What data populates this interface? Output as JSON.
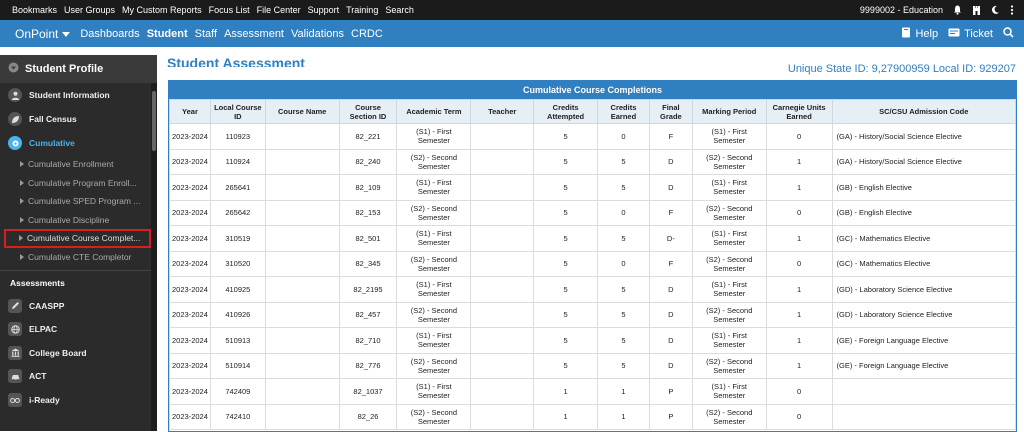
{
  "topbar": {
    "links": [
      "Bookmarks",
      "User Groups",
      "My Custom Reports",
      "Focus List",
      "File Center",
      "Support",
      "Training",
      "Search"
    ],
    "district": "9999002 - Education"
  },
  "navbar": {
    "brand": "OnPoint",
    "items": [
      {
        "label": "Dashboards",
        "active": false
      },
      {
        "label": "Student",
        "active": true
      },
      {
        "label": "Staff",
        "active": false
      },
      {
        "label": "Assessment",
        "active": false
      },
      {
        "label": "Validations",
        "active": false
      },
      {
        "label": "CRDC",
        "active": false
      }
    ],
    "help_label": "Help",
    "ticket_label": "Ticket"
  },
  "sidebar": {
    "header": "Student Profile",
    "main_items": [
      {
        "label": "Student Information",
        "icon": "person-icon",
        "active": false
      },
      {
        "label": "Fall Census",
        "icon": "leaf-icon",
        "active": false
      },
      {
        "label": "Cumulative",
        "icon": "gear-icon",
        "active": true
      }
    ],
    "sub_items": [
      {
        "label": "Cumulative Enrollment",
        "selected": false
      },
      {
        "label": "Cumulative Program Enroll...",
        "selected": false
      },
      {
        "label": "Cumulative SPED Program ...",
        "selected": false
      },
      {
        "label": "Cumulative Discipline",
        "selected": false
      },
      {
        "label": "Cumulative Course Complet...",
        "selected": true
      },
      {
        "label": "Cumulative CTE Completor",
        "selected": false
      }
    ],
    "section_label": "Assessments",
    "assessment_items": [
      {
        "label": "CAASPP",
        "icon": "pencil-icon"
      },
      {
        "label": "ELPAC",
        "icon": "globe-icon"
      },
      {
        "label": "College Board",
        "icon": "building-icon"
      },
      {
        "label": "ACT",
        "icon": "car-icon"
      },
      {
        "label": "i-Ready",
        "icon": "glasses-icon"
      }
    ]
  },
  "page": {
    "title": "Student Assessment",
    "state_id": "Unique State ID: 9,27900959 Local ID: 929207"
  },
  "table": {
    "title": "Cumulative Course Completions",
    "columns": [
      "Year",
      "Local Course ID",
      "Course Name",
      "Course Section ID",
      "Academic Term",
      "Teacher",
      "Credits Attempted",
      "Credits Earned",
      "Final Grade",
      "Marking Period",
      "Carnegie Units Earned",
      "SC/CSU Admission Code"
    ],
    "rows": [
      [
        "2023-2024",
        "110923",
        "",
        "82_221",
        "(S1) - First Semester",
        "",
        "5",
        "0",
        "F",
        "(S1) - First Semester",
        "0",
        "(GA) - History/Social Science Elective"
      ],
      [
        "2023-2024",
        "110924",
        "",
        "82_240",
        "(S2) - Second Semester",
        "",
        "5",
        "5",
        "D",
        "(S2) - Second Semester",
        "1",
        "(GA) - History/Social Science Elective"
      ],
      [
        "2023-2024",
        "265641",
        "",
        "82_109",
        "(S1) - First Semester",
        "",
        "5",
        "5",
        "D",
        "(S1) - First Semester",
        "1",
        "(GB) - English Elective"
      ],
      [
        "2023-2024",
        "265642",
        "",
        "82_153",
        "(S2) - Second Semester",
        "",
        "5",
        "0",
        "F",
        "(S2) - Second Semester",
        "0",
        "(GB) - English Elective"
      ],
      [
        "2023-2024",
        "310519",
        "",
        "82_501",
        "(S1) - First Semester",
        "",
        "5",
        "5",
        "D-",
        "(S1) - First Semester",
        "1",
        "(GC) - Mathematics Elective"
      ],
      [
        "2023-2024",
        "310520",
        "",
        "82_345",
        "(S2) - Second Semester",
        "",
        "5",
        "0",
        "F",
        "(S2) - Second Semester",
        "0",
        "(GC) - Mathematics Elective"
      ],
      [
        "2023-2024",
        "410925",
        "",
        "82_2195",
        "(S1) - First Semester",
        "",
        "5",
        "5",
        "D",
        "(S1) - First Semester",
        "1",
        "(GD) - Laboratory Science Elective"
      ],
      [
        "2023-2024",
        "410926",
        "",
        "82_457",
        "(S2) - Second Semester",
        "",
        "5",
        "5",
        "D",
        "(S2) - Second Semester",
        "1",
        "(GD) - Laboratory Science Elective"
      ],
      [
        "2023-2024",
        "510913",
        "",
        "82_710",
        "(S1) - First Semester",
        "",
        "5",
        "5",
        "D",
        "(S1) - First Semester",
        "1",
        "(GE) - Foreign Language Elective"
      ],
      [
        "2023-2024",
        "510914",
        "",
        "82_776",
        "(S2) - Second Semester",
        "",
        "5",
        "5",
        "D",
        "(S2) - Second Semester",
        "1",
        "(GE) - Foreign Language Elective"
      ],
      [
        "2023-2024",
        "742409",
        "",
        "82_1037",
        "(S1) - First Semester",
        "",
        "1",
        "1",
        "P",
        "(S1) - First Semester",
        "0",
        ""
      ],
      [
        "2023-2024",
        "742410",
        "",
        "82_26",
        "(S2) - Second Semester",
        "",
        "1",
        "1",
        "P",
        "(S2) - Second Semester",
        "0",
        ""
      ]
    ]
  },
  "colors": {
    "topbar_bg": "#1b1b1b",
    "navbar_bg": "#2f7fc1",
    "sidebar_bg": "#2b2b2b",
    "active_accent": "#4ab3ea",
    "selection_outline": "#d81e1e"
  }
}
